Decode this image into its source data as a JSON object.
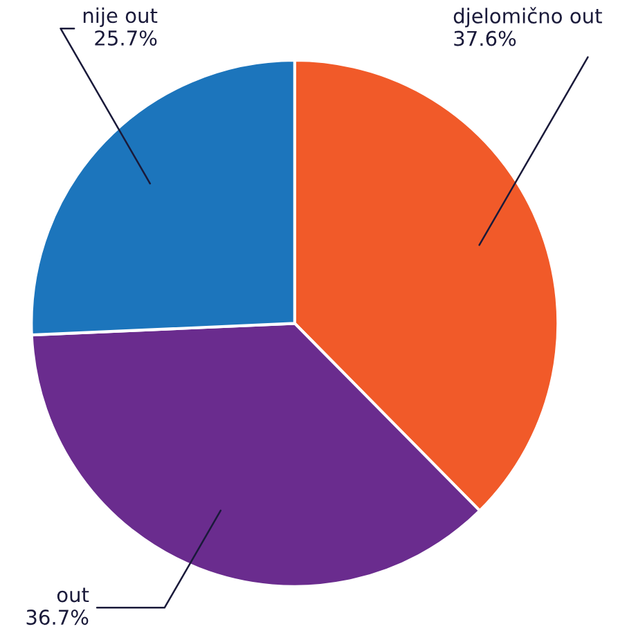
{
  "chart_data": {
    "type": "pie",
    "categories": [
      "djelomično out",
      "out",
      "nije out"
    ],
    "values": [
      37.6,
      36.7,
      25.7
    ],
    "value_labels": [
      "37.6%",
      "36.7%",
      "25.7%"
    ],
    "colors": [
      "#f15a29",
      "#6a2c8e",
      "#1c75bc"
    ]
  }
}
